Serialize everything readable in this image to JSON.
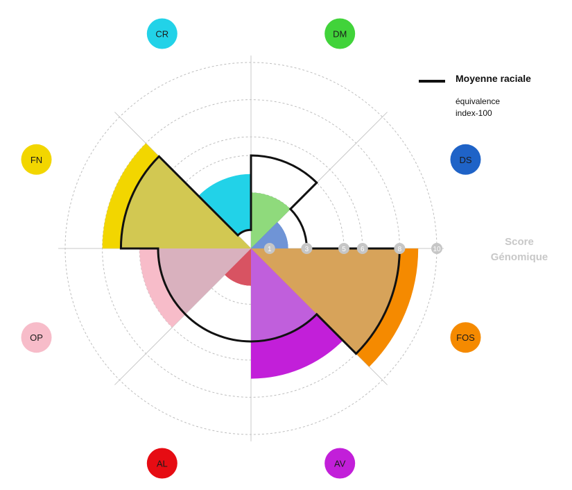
{
  "chart_data": {
    "type": "polar-area",
    "axis": {
      "label_line1": "Score",
      "label_line2": "Génomique",
      "ticks": [
        1,
        3,
        5,
        6,
        8,
        10
      ],
      "range": [
        0,
        10
      ]
    },
    "legend": {
      "line_label": "Moyenne raciale",
      "line_sublabel_1": "équivalence",
      "line_sublabel_2": "index-100"
    },
    "categories": [
      "DM",
      "DS",
      "FOS",
      "AV",
      "AL",
      "OP",
      "FN",
      "CR"
    ],
    "category_colors": [
      "#41d33a",
      "#1f63c7",
      "#f58a00",
      "#c21fd9",
      "#e60c13",
      "#f7bcc9",
      "#f2d600",
      "#22d2e8"
    ],
    "sector_colors": [
      "#8fda7c",
      "#6f94d6",
      "#d7a35a",
      "#c05fdc",
      "#d85362",
      "#d9b1be",
      "#d2c852",
      "#66d4e4"
    ],
    "values": [
      3,
      2,
      9,
      7,
      2,
      6,
      8,
      4
    ],
    "sector_inner_values": [
      0,
      0,
      0,
      0,
      0,
      0,
      0,
      1
    ],
    "breed_average": [
      5,
      3,
      8,
      5,
      5,
      5,
      7,
      1
    ]
  }
}
